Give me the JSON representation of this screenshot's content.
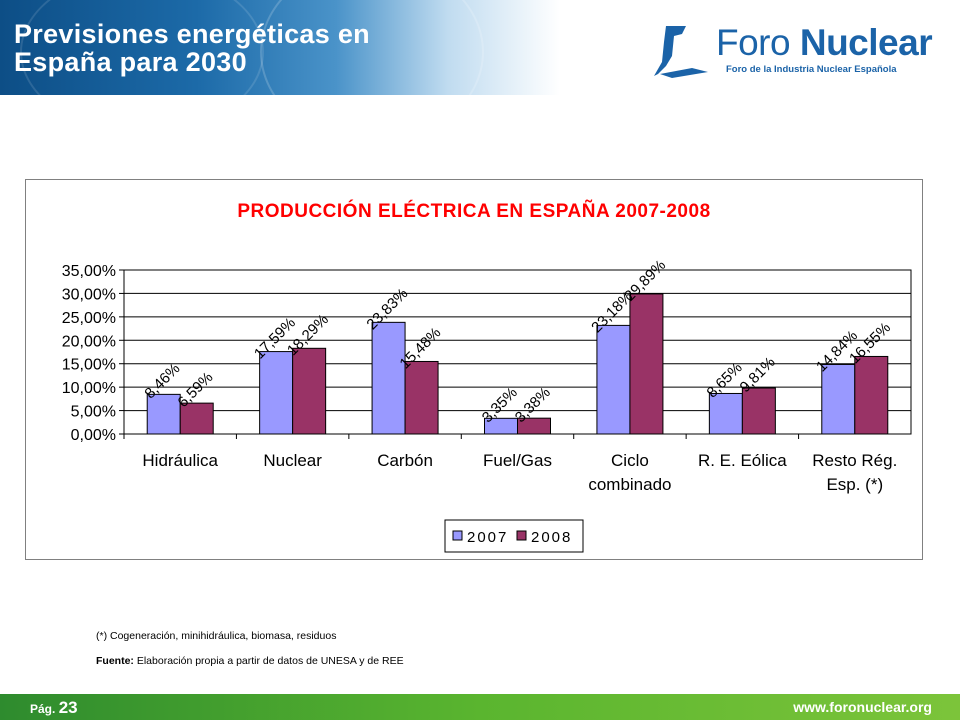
{
  "header": {
    "title_line1": "Previsiones energéticas en",
    "title_line2": "España para 2030",
    "logo_name_light": "Foro ",
    "logo_name_bold": "Nuclear",
    "logo_subtitle": "Foro de la Industria Nuclear Española"
  },
  "chart_data": {
    "type": "bar",
    "title": "PRODUCCIÓN ELÉCTRICA EN ESPAÑA  2007-2008",
    "categories": [
      [
        "Hidráulica"
      ],
      [
        "Nuclear"
      ],
      [
        "Carbón"
      ],
      [
        "Fuel/Gas"
      ],
      [
        "Ciclo",
        "combinado"
      ],
      [
        "R. E. Eólica"
      ],
      [
        "Resto Rég.",
        "Esp. (*)"
      ]
    ],
    "series": [
      {
        "name": "2007",
        "values": [
          8.46,
          17.59,
          23.83,
          3.35,
          23.18,
          8.65,
          14.84
        ],
        "labels": [
          "8,46%",
          "17,59%",
          "23,83%",
          "3,35%",
          "23,18%",
          "8,65%",
          "14,84%"
        ],
        "color": "#9999ff"
      },
      {
        "name": "2008",
        "values": [
          6.59,
          18.29,
          15.48,
          3.38,
          29.89,
          9.81,
          16.55
        ],
        "labels": [
          "6,59%",
          "18,29%",
          "15,48%",
          "3,38%",
          "29,89%",
          "9,81%",
          "16,55%"
        ],
        "color": "#993366"
      }
    ],
    "y_ticks": [
      "0,00%",
      "5,00%",
      "10,00%",
      "15,00%",
      "20,00%",
      "25,00%",
      "30,00%",
      "35,00%"
    ],
    "ylim": [
      0,
      35
    ],
    "grid": true,
    "legend_position": "bottom"
  },
  "footnote": "(*) Cogeneración, minihidráulica, biomasa, residuos",
  "source": {
    "label": "Fuente:",
    "text": " Elaboración propia a partir de datos de UNESA y de REE"
  },
  "footer": {
    "page_prefix": "Pág. ",
    "page_number": "23",
    "website": "www.foronuclear.org"
  }
}
